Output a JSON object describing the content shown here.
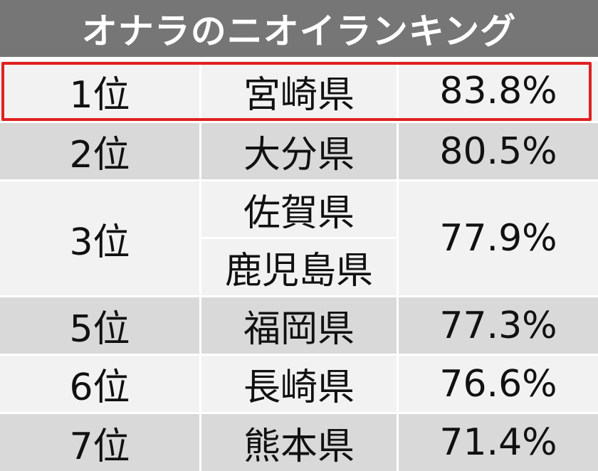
{
  "title": "オナラのニオイランキング",
  "highlight_color": "#e02020",
  "rows": [
    {
      "rank": "1位",
      "prefectures": [
        "宮崎県"
      ],
      "percent": "83.8%"
    },
    {
      "rank": "2位",
      "prefectures": [
        "大分県"
      ],
      "percent": "80.5%"
    },
    {
      "rank": "3位",
      "prefectures": [
        "佐賀県",
        "鹿児島県"
      ],
      "percent": "77.9%"
    },
    {
      "rank": "5位",
      "prefectures": [
        "福岡県"
      ],
      "percent": "77.3%"
    },
    {
      "rank": "6位",
      "prefectures": [
        "長崎県"
      ],
      "percent": "76.6%"
    },
    {
      "rank": "7位",
      "prefectures": [
        "熊本県"
      ],
      "percent": "71.4%"
    }
  ]
}
